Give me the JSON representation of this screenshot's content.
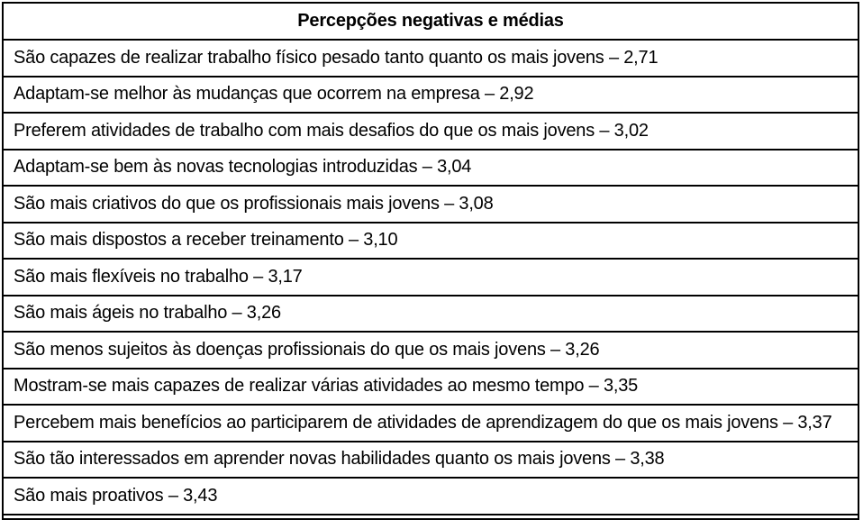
{
  "table": {
    "title": "Percepções negativas e médias",
    "rows": [
      {
        "text": "São capazes de realizar trabalho físico pesado tanto quanto os mais jovens – 2,71"
      },
      {
        "text": "Adaptam-se melhor às mudanças que ocorrem na empresa – 2,92"
      },
      {
        "text": "Preferem atividades de trabalho com mais desafios do que os mais jovens – 3,02"
      },
      {
        "text": "Adaptam-se bem às novas tecnologias introduzidas – 3,04"
      },
      {
        "text": "São mais criativos do que os profissionais mais jovens – 3,08"
      },
      {
        "text": "São mais dispostos a receber treinamento – 3,10"
      },
      {
        "text": "São mais flexíveis no trabalho – 3,17"
      },
      {
        "text": "São mais ágeis no trabalho – 3,26"
      },
      {
        "text": "São menos sujeitos às doenças profissionais do que os mais jovens – 3,26"
      },
      {
        "text": "Mostram-se mais capazes de realizar várias atividades ao mesmo tempo – 3,35"
      },
      {
        "text": "Percebem mais benefícios ao participarem de atividades de aprendizagem do que os mais jovens – 3,37"
      },
      {
        "text": "São tão interessados em aprender novas habilidades quanto os mais jovens – 3,38"
      },
      {
        "text": "São mais proativos – 3,43"
      }
    ]
  },
  "colors": {
    "border": "#000000",
    "background": "#ffffff",
    "text": "#000000"
  }
}
